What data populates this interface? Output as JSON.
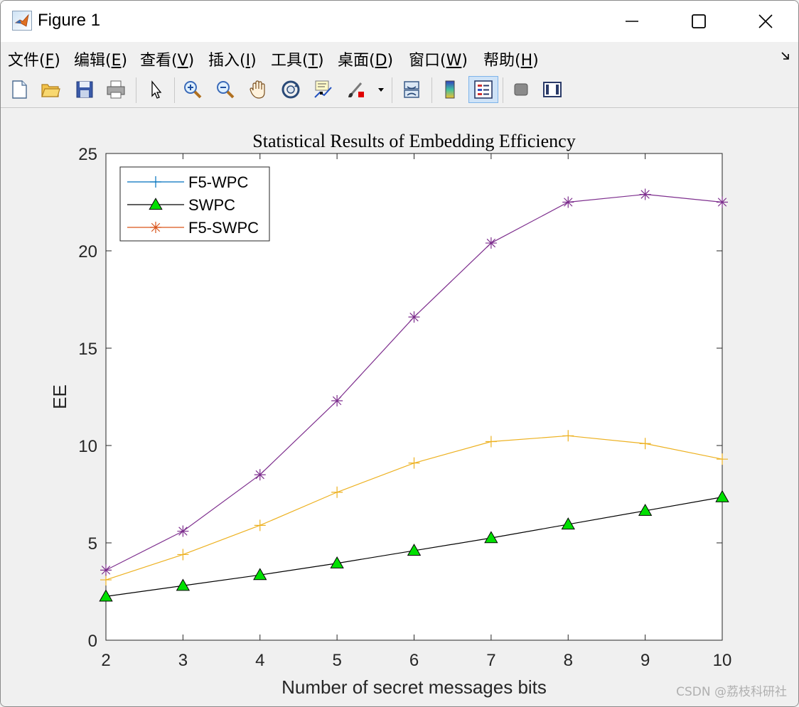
{
  "window": {
    "title": "Figure 1"
  },
  "menu": [
    {
      "label": "文件(",
      "key": "F",
      "end": ")"
    },
    {
      "label": "编辑(",
      "key": "E",
      "end": ")"
    },
    {
      "label": "查看(",
      "key": "V",
      "end": ")"
    },
    {
      "label": "插入(",
      "key": "I",
      "end": ")"
    },
    {
      "label": "工具(",
      "key": "T",
      "end": ")"
    },
    {
      "label": "桌面(",
      "key": "D",
      "end": ")"
    },
    {
      "label": "窗口(",
      "key": "W",
      "end": ")"
    },
    {
      "label": "帮助(",
      "key": "H",
      "end": ")"
    }
  ],
  "toolbar": {
    "icons": [
      "new-file-icon",
      "open-folder-icon",
      "save-icon",
      "print-icon",
      "pointer-icon",
      "zoom-in-icon",
      "zoom-out-icon",
      "pan-hand-icon",
      "rotate-3d-icon",
      "data-cursor-icon",
      "brush-icon",
      "link-plot-icon",
      "colorbar-icon",
      "legend-icon",
      "hide-plot-tools-icon",
      "show-plot-tools-icon"
    ],
    "active": "legend-icon"
  },
  "watermark": "CSDN @荔枝科研社",
  "chart_data": {
    "type": "line",
    "title": "Statistical Results of Embedding Efficiency",
    "xlabel": "Number of secret messages bits",
    "ylabel": "EE",
    "x": [
      2,
      3,
      4,
      5,
      6,
      7,
      8,
      9,
      10
    ],
    "xlim": [
      2,
      10
    ],
    "ylim": [
      0,
      25
    ],
    "xticks": [
      "2",
      "3",
      "4",
      "5",
      "6",
      "7",
      "8",
      "9",
      "10"
    ],
    "yticks": [
      "0",
      "5",
      "10",
      "15",
      "20",
      "25"
    ],
    "grid": false,
    "legend_position": "top-left",
    "series": [
      {
        "name": "F5-WPC",
        "marker": "plus",
        "legend_color": "#0072bd",
        "line_color": "#edb120",
        "values": [
          3.1,
          4.4,
          5.9,
          7.6,
          9.1,
          10.2,
          10.5,
          10.1,
          9.3
        ]
      },
      {
        "name": "SWPC",
        "marker": "triangle",
        "legend_color": "#000000",
        "line_color": "#000000",
        "fill": "#00e000",
        "values": [
          2.25,
          2.8,
          3.35,
          3.95,
          4.6,
          5.25,
          5.95,
          6.65,
          7.35
        ]
      },
      {
        "name": "F5-SWPC",
        "marker": "star",
        "legend_color": "#d95319",
        "line_color": "#7e2f8e",
        "values": [
          3.6,
          5.6,
          8.5,
          12.3,
          16.6,
          20.4,
          22.5,
          22.9,
          22.5
        ]
      }
    ]
  }
}
